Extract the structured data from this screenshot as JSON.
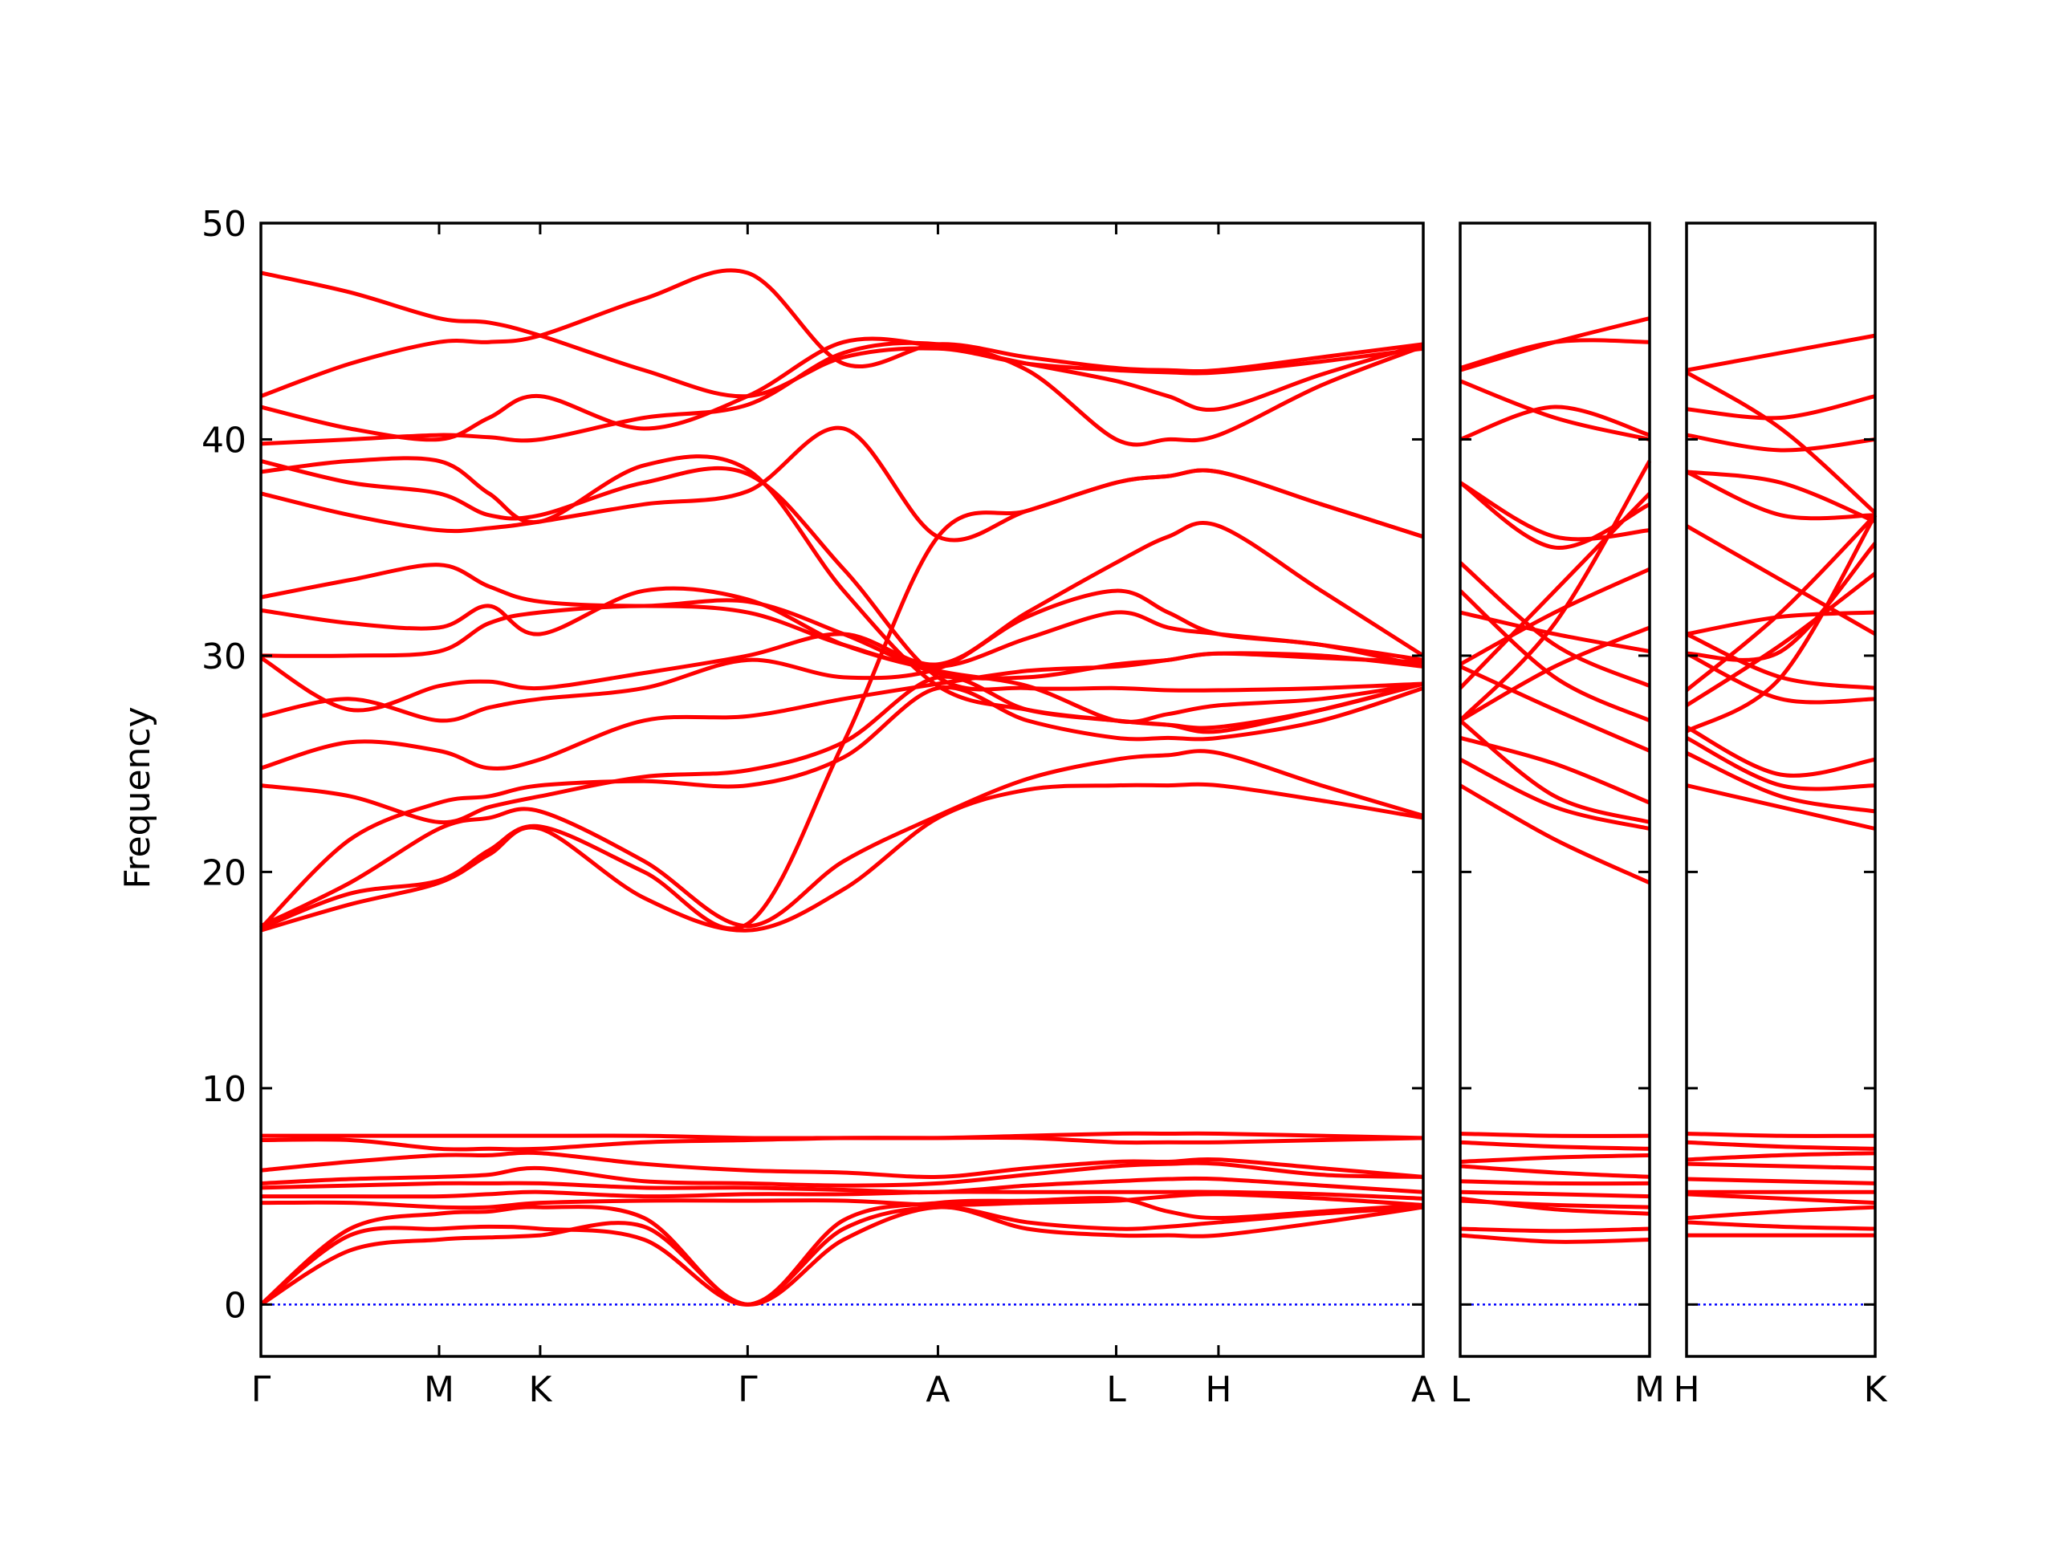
{
  "chart_data": {
    "type": "line",
    "ylabel": "Frequency",
    "color": "#ff0000",
    "reference_line": 0,
    "reference_color": "#0000ff",
    "ylim": [
      -2.4,
      50
    ],
    "yticks": [
      0,
      10,
      20,
      30,
      40,
      50
    ],
    "panels": [
      {
        "xlim": [
          0,
          6.522
        ],
        "xticks": [
          {
            "value": 0,
            "label": "Γ"
          },
          {
            "value": 1.0,
            "label": "M"
          },
          {
            "value": 1.567,
            "label": "K"
          },
          {
            "value": 2.731,
            "label": "Γ"
          },
          {
            "value": 3.799,
            "label": "A"
          },
          {
            "value": 4.799,
            "label": "L"
          },
          {
            "value": 5.373,
            "label": "H"
          },
          {
            "value": 6.522,
            "label": "A"
          }
        ],
        "x": [
          0,
          0.5,
          1.0,
          1.28,
          1.567,
          2.15,
          2.731,
          3.27,
          3.799,
          4.3,
          4.799,
          5.09,
          5.373,
          5.95,
          6.522
        ],
        "series": [
          {
            "values": [
              0,
              2.5,
              3.0,
              3.1,
              3.2,
              3.6,
              0,
              3.0,
              4.5,
              3.5,
              3.2,
              3.2,
              3.2,
              3.8,
              4.5
            ]
          },
          {
            "values": [
              0,
              3.2,
              3.5,
              3.6,
              3.5,
              3.0,
              0,
              3.5,
              4.5,
              3.8,
              3.5,
              3.6,
              3.8,
              4.2,
              4.5
            ]
          },
          {
            "values": [
              0,
              3.5,
              4.2,
              4.3,
              4.5,
              4.0,
              0,
              3.9,
              4.7,
              4.8,
              4.9,
              4.3,
              4.0,
              4.3,
              4.6
            ]
          },
          {
            "values": [
              4.7,
              4.7,
              4.5,
              4.5,
              4.7,
              4.8,
              4.8,
              4.8,
              4.6,
              4.7,
              4.8,
              5.0,
              5.1,
              4.9,
              4.6
            ]
          },
          {
            "values": [
              5.0,
              5.0,
              5.0,
              5.1,
              5.2,
              5.0,
              5.1,
              5.1,
              5.2,
              5.2,
              5.2,
              5.2,
              5.2,
              5.1,
              4.9
            ]
          },
          {
            "values": [
              5.4,
              5.5,
              5.6,
              5.6,
              5.6,
              5.4,
              5.4,
              5.3,
              5.2,
              5.5,
              5.7,
              5.8,
              5.8,
              5.5,
              5.2
            ]
          },
          {
            "values": [
              5.6,
              5.8,
              5.9,
              6.0,
              6.3,
              5.7,
              5.6,
              5.5,
              5.6,
              6.0,
              6.4,
              6.5,
              6.5,
              6.0,
              5.9
            ]
          },
          {
            "values": [
              6.2,
              6.6,
              6.9,
              6.9,
              7.0,
              6.5,
              6.2,
              6.1,
              5.9,
              6.3,
              6.6,
              6.6,
              6.7,
              6.3,
              5.9
            ]
          },
          {
            "values": [
              7.6,
              7.6,
              7.2,
              7.2,
              7.2,
              7.5,
              7.6,
              7.7,
              7.7,
              7.7,
              7.5,
              7.5,
              7.5,
              7.6,
              7.7
            ]
          },
          {
            "values": [
              7.8,
              7.8,
              7.8,
              7.8,
              7.8,
              7.8,
              7.7,
              7.7,
              7.7,
              7.8,
              7.9,
              7.9,
              7.9,
              7.8,
              7.7
            ]
          },
          {
            "values": [
              17.3,
              18.5,
              19.5,
              20.8,
              22.0,
              18.8,
              17.3,
              19.2,
              22.5,
              23.8,
              24.0,
              24.0,
              24.0,
              23.3,
              22.5
            ]
          },
          {
            "values": [
              17.5,
              19.5,
              22.0,
              22.5,
              22.8,
              20.5,
              17.5,
              20.5,
              22.6,
              24.3,
              25.2,
              25.4,
              25.5,
              24.0,
              22.6
            ]
          },
          {
            "values": [
              17.4,
              21.5,
              23.2,
              23.5,
              24.0,
              24.2,
              24.0,
              25.3,
              28.5,
              27.0,
              26.2,
              26.2,
              26.2,
              27.0,
              28.5
            ]
          },
          {
            "values": [
              24.0,
              23.5,
              22.3,
              23.0,
              23.5,
              24.4,
              24.7,
              26.0,
              29.0,
              27.5,
              27.0,
              26.8,
              26.7,
              27.5,
              28.7
            ]
          },
          {
            "values": [
              24.8,
              26.0,
              25.6,
              24.8,
              25.2,
              27.0,
              27.2,
              28.0,
              28.7,
              29.3,
              29.5,
              29.8,
              30.1,
              30.0,
              29.5
            ]
          },
          {
            "values": [
              27.2,
              28.0,
              27.0,
              27.6,
              28.0,
              28.5,
              29.8,
              29.0,
              29.4,
              31.8,
              33.0,
              32.0,
              31.0,
              30.5,
              29.5
            ]
          },
          {
            "values": [
              29.9,
              27.5,
              28.6,
              28.8,
              28.5,
              29.2,
              30.0,
              31.0,
              29.6,
              32.0,
              34.3,
              35.5,
              36.0,
              33.0,
              30.0
            ]
          },
          {
            "values": [
              30.0,
              30.0,
              30.2,
              31.5,
              32.0,
              32.3,
              32.0,
              30.5,
              29.5,
              30.8,
              32.0,
              31.3,
              31.0,
              30.5,
              29.8
            ]
          },
          {
            "values": [
              32.1,
              31.5,
              31.3,
              32.3,
              31.0,
              33.0,
              32.6,
              30.5,
              29.3,
              28.6,
              27.0,
              27.3,
              27.7,
              28.0,
              28.7
            ]
          },
          {
            "values": [
              32.7,
              33.5,
              34.2,
              33.2,
              32.5,
              32.3,
              32.5,
              31.0,
              29.2,
              29.0,
              29.6,
              29.8,
              30.1,
              29.9,
              29.7
            ]
          },
          {
            "values": [
              17.4,
              19.0,
              19.6,
              21.0,
              22.1,
              20.0,
              17.6,
              26.0,
              35.5,
              36.7,
              38.0,
              38.3,
              38.5,
              37.0,
              35.5
            ]
          },
          {
            "values": [
              38.5,
              39.0,
              39.0,
              37.5,
              36.2,
              38.8,
              38.6,
              33.0,
              28.6,
              27.5,
              27.0,
              26.8,
              26.5,
              27.5,
              28.7
            ]
          },
          {
            "values": [
              39.0,
              38.0,
              37.5,
              36.5,
              36.5,
              38.0,
              38.4,
              34.0,
              29.0,
              28.5,
              28.5,
              28.4,
              28.4,
              28.5,
              28.7
            ]
          },
          {
            "values": [
              37.5,
              36.5,
              35.8,
              35.9,
              36.2,
              37.0,
              37.6,
              40.5,
              35.5,
              36.7,
              38.0,
              38.3,
              38.5,
              37.0,
              35.5
            ]
          },
          {
            "values": [
              39.8,
              40.0,
              40.2,
              40.1,
              40.0,
              41.0,
              41.6,
              44.0,
              44.4,
              43.2,
              40.0,
              40.0,
              40.2,
              42.5,
              44.3
            ]
          },
          {
            "values": [
              41.5,
              40.5,
              40.0,
              41.0,
              42.0,
              40.5,
              42.0,
              44.5,
              44.3,
              43.5,
              42.7,
              42.0,
              41.4,
              43.0,
              44.4
            ]
          },
          {
            "values": [
              42.0,
              43.5,
              44.5,
              44.5,
              44.8,
              46.5,
              47.7,
              43.5,
              44.4,
              43.8,
              43.3,
              43.2,
              43.2,
              43.8,
              44.4
            ]
          },
          {
            "values": [
              47.7,
              46.8,
              45.6,
              45.4,
              44.8,
              43.2,
              42.0,
              43.8,
              44.2,
              43.5,
              43.2,
              43.1,
              43.1,
              43.6,
              44.2
            ]
          }
        ]
      },
      {
        "xlim": [
          0,
          1.06
        ],
        "xticks": [
          {
            "value": 0,
            "label": "L"
          },
          {
            "value": 1.06,
            "label": "M"
          }
        ],
        "x": [
          0,
          0.53,
          1.06
        ],
        "series": [
          {
            "values": [
              3.2,
              2.9,
              3.0
            ]
          },
          {
            "values": [
              3.5,
              3.4,
              3.5
            ]
          },
          {
            "values": [
              4.9,
              4.4,
              4.2
            ]
          },
          {
            "values": [
              4.8,
              4.6,
              4.5
            ]
          },
          {
            "values": [
              5.2,
              5.1,
              5.0
            ]
          },
          {
            "values": [
              5.7,
              5.6,
              5.6
            ]
          },
          {
            "values": [
              6.4,
              6.1,
              5.9
            ]
          },
          {
            "values": [
              6.6,
              6.8,
              6.9
            ]
          },
          {
            "values": [
              7.5,
              7.3,
              7.2
            ]
          },
          {
            "values": [
              7.9,
              7.8,
              7.8
            ]
          },
          {
            "values": [
              24.0,
              21.5,
              19.5
            ]
          },
          {
            "values": [
              25.2,
              23.0,
              22.0
            ]
          },
          {
            "values": [
              26.2,
              25.0,
              23.2
            ]
          },
          {
            "values": [
              27.0,
              23.5,
              22.3
            ]
          },
          {
            "values": [
              29.5,
              27.5,
              25.6
            ]
          },
          {
            "values": [
              33.0,
              29.0,
              27.0
            ]
          },
          {
            "values": [
              34.3,
              30.5,
              28.6
            ]
          },
          {
            "values": [
              32.0,
              31.0,
              30.2
            ]
          },
          {
            "values": [
              27.0,
              29.5,
              31.3
            ]
          },
          {
            "values": [
              29.6,
              32.0,
              34.0
            ]
          },
          {
            "values": [
              38.0,
              35.0,
              37.0
            ]
          },
          {
            "values": [
              27.0,
              31.5,
              39.0
            ]
          },
          {
            "values": [
              28.5,
              33.0,
              37.5
            ]
          },
          {
            "values": [
              38.0,
              35.5,
              35.8
            ]
          },
          {
            "values": [
              40.0,
              41.5,
              40.2
            ]
          },
          {
            "values": [
              42.7,
              41.0,
              40.0
            ]
          },
          {
            "values": [
              43.3,
              44.5,
              44.5
            ]
          },
          {
            "values": [
              43.2,
              44.5,
              45.6
            ]
          }
        ]
      },
      {
        "xlim": [
          0,
          1.06
        ],
        "xticks": [
          {
            "value": 0,
            "label": "H"
          },
          {
            "value": 1.06,
            "label": "K"
          }
        ],
        "x": [
          0,
          0.53,
          1.06
        ],
        "series": [
          {
            "values": [
              3.2,
              3.2,
              3.2
            ]
          },
          {
            "values": [
              3.8,
              3.6,
              3.5
            ]
          },
          {
            "values": [
              4.0,
              4.3,
              4.5
            ]
          },
          {
            "values": [
              5.1,
              4.9,
              4.7
            ]
          },
          {
            "values": [
              5.2,
              5.2,
              5.2
            ]
          },
          {
            "values": [
              5.8,
              5.7,
              5.6
            ]
          },
          {
            "values": [
              6.5,
              6.4,
              6.3
            ]
          },
          {
            "values": [
              6.7,
              6.9,
              7.0
            ]
          },
          {
            "values": [
              7.5,
              7.3,
              7.2
            ]
          },
          {
            "values": [
              7.9,
              7.8,
              7.8
            ]
          },
          {
            "values": [
              24.0,
              23.0,
              22.0
            ]
          },
          {
            "values": [
              25.5,
              23.5,
              22.8
            ]
          },
          {
            "values": [
              26.2,
              24.0,
              24.0
            ]
          },
          {
            "values": [
              26.7,
              24.5,
              25.2
            ]
          },
          {
            "values": [
              30.1,
              28.0,
              28.0
            ]
          },
          {
            "values": [
              31.0,
              29.0,
              28.5
            ]
          },
          {
            "values": [
              36.0,
              33.5,
              31.0
            ]
          },
          {
            "values": [
              31.0,
              31.8,
              32.0
            ]
          },
          {
            "values": [
              27.7,
              30.5,
              33.8
            ]
          },
          {
            "values": [
              30.1,
              30.2,
              35.2
            ]
          },
          {
            "values": [
              38.5,
              36.5,
              36.5
            ]
          },
          {
            "values": [
              26.5,
              29.0,
              36.5
            ]
          },
          {
            "values": [
              28.4,
              32.0,
              36.5
            ]
          },
          {
            "values": [
              38.5,
              38.0,
              36.2
            ]
          },
          {
            "values": [
              40.2,
              39.5,
              40.0
            ]
          },
          {
            "values": [
              41.4,
              41.0,
              42.0
            ]
          },
          {
            "values": [
              43.2,
              44.0,
              44.8
            ]
          },
          {
            "values": [
              43.1,
              40.5,
              36.6
            ]
          }
        ]
      }
    ]
  }
}
